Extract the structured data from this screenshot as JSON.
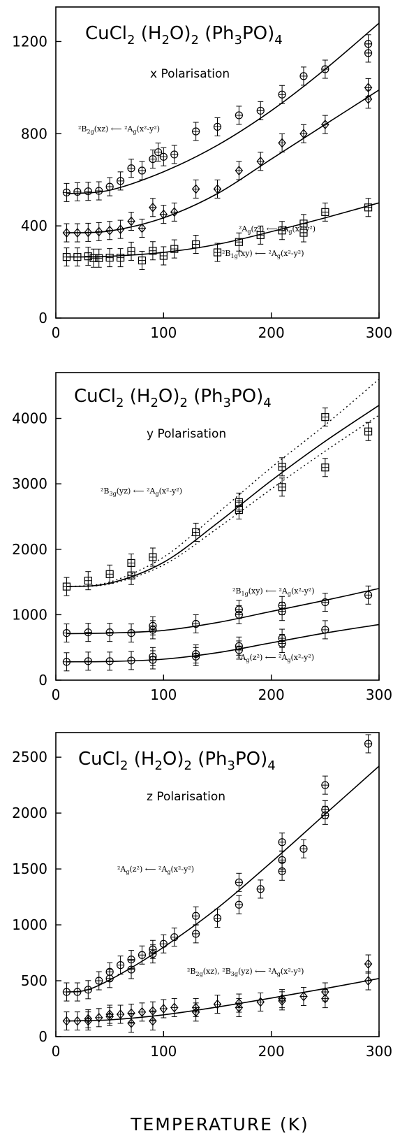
{
  "x_axis_title": "TEMPERATURE (K)",
  "chart_data": [
    {
      "type": "scatter",
      "title": "CuCl2 (H2O)2 (Ph3PO)4",
      "subtitle": "x Polarisation",
      "xlabel": "TEMPERATURE (K)",
      "ylabel": "",
      "xlim": [
        0,
        300
      ],
      "ylim": [
        0,
        1350
      ],
      "xticks": [
        0,
        100,
        200,
        300
      ],
      "yticks": [
        0,
        400,
        800,
        1200
      ],
      "series": [
        {
          "name": "2B2g(xz) ← 2Ag(x2-y2)",
          "points": [
            [
              10,
              545
            ],
            [
              20,
              548
            ],
            [
              30,
              550
            ],
            [
              40,
              552
            ],
            [
              50,
              570
            ],
            [
              60,
              595
            ],
            [
              70,
              650
            ],
            [
              80,
              640
            ],
            [
              90,
              690
            ],
            [
              95,
              720
            ],
            [
              100,
              700
            ],
            [
              110,
              710
            ],
            [
              130,
              810
            ],
            [
              150,
              830
            ],
            [
              170,
              880
            ],
            [
              190,
              900
            ],
            [
              210,
              970
            ],
            [
              230,
              1050
            ],
            [
              250,
              1080
            ],
            [
              290,
              1190
            ],
            [
              290,
              1150
            ]
          ],
          "fit": [
            [
              10,
              540
            ],
            [
              50,
              555
            ],
            [
              100,
              635
            ],
            [
              150,
              750
            ],
            [
              200,
              900
            ],
            [
              250,
              1080
            ],
            [
              300,
              1280
            ]
          ]
        },
        {
          "name": "2Ag(z2) ← 2Ag(x2-y2)",
          "points": [
            [
              10,
              370
            ],
            [
              20,
              370
            ],
            [
              30,
              372
            ],
            [
              40,
              375
            ],
            [
              50,
              380
            ],
            [
              60,
              385
            ],
            [
              70,
              420
            ],
            [
              80,
              390
            ],
            [
              90,
              480
            ],
            [
              100,
              450
            ],
            [
              110,
              460
            ],
            [
              130,
              560
            ],
            [
              150,
              560
            ],
            [
              170,
              640
            ],
            [
              190,
              680
            ],
            [
              210,
              760
            ],
            [
              230,
              800
            ],
            [
              250,
              840
            ],
            [
              290,
              1000
            ],
            [
              290,
              950
            ]
          ],
          "fit": [
            [
              10,
              370
            ],
            [
              50,
              378
            ],
            [
              100,
              435
            ],
            [
              150,
              540
            ],
            [
              200,
              690
            ],
            [
              250,
              840
            ],
            [
              300,
              990
            ]
          ]
        },
        {
          "name": "2B1g(xy) ← 2Ag(x2-y2)",
          "points": [
            [
              10,
              265
            ],
            [
              20,
              265
            ],
            [
              30,
              268
            ],
            [
              35,
              260
            ],
            [
              40,
              260
            ],
            [
              50,
              262
            ],
            [
              60,
              262
            ],
            [
              70,
              290
            ],
            [
              80,
              250
            ],
            [
              90,
              292
            ],
            [
              100,
              270
            ],
            [
              110,
              300
            ],
            [
              130,
              320
            ],
            [
              150,
              285
            ],
            [
              170,
              330
            ],
            [
              190,
              360
            ],
            [
              210,
              380
            ],
            [
              230,
              410
            ],
            [
              230,
              370
            ],
            [
              250,
              460
            ],
            [
              290,
              480
            ]
          ],
          "fit": [
            [
              10,
              265
            ],
            [
              50,
              268
            ],
            [
              100,
              285
            ],
            [
              150,
              320
            ],
            [
              200,
              375
            ],
            [
              250,
              435
            ],
            [
              300,
              500
            ]
          ]
        }
      ]
    },
    {
      "type": "scatter",
      "title": "CuCl2 (H2O)2 (Ph3PO)4",
      "subtitle": "y Polarisation",
      "xlabel": "TEMPERATURE (K)",
      "ylabel": "",
      "xlim": [
        0,
        300
      ],
      "ylim": [
        0,
        4700
      ],
      "xticks": [
        0,
        100,
        200,
        300
      ],
      "yticks": [
        0,
        1000,
        2000,
        3000,
        4000
      ],
      "series": [
        {
          "name": "2B3g(yz) ← 2Ag(x2-y2)",
          "points": [
            [
              10,
              1430
            ],
            [
              30,
              1520
            ],
            [
              50,
              1620
            ],
            [
              70,
              1600
            ],
            [
              70,
              1790
            ],
            [
              90,
              1880
            ],
            [
              130,
              2260
            ],
            [
              170,
              2600
            ],
            [
              170,
              2720
            ],
            [
              210,
              2950
            ],
            [
              210,
              3260
            ],
            [
              250,
              3250
            ],
            [
              250,
              4020
            ],
            [
              290,
              3800
            ]
          ],
          "fit": [
            [
              10,
              1430
            ],
            [
              50,
              1480
            ],
            [
              100,
              1800
            ],
            [
              150,
              2400
            ],
            [
              200,
              3050
            ],
            [
              250,
              3650
            ],
            [
              300,
              4200
            ]
          ],
          "fit_upper": [
            [
              10,
              1430
            ],
            [
              50,
              1500
            ],
            [
              100,
              1880
            ],
            [
              150,
              2550
            ],
            [
              200,
              3250
            ],
            [
              250,
              3900
            ],
            [
              300,
              4600
            ]
          ],
          "fit_lower": [
            [
              10,
              1430
            ],
            [
              50,
              1470
            ],
            [
              100,
              1760
            ],
            [
              150,
              2320
            ],
            [
              200,
              2920
            ],
            [
              250,
              3500
            ],
            [
              300,
              4050
            ]
          ]
        },
        {
          "name": "2B1g(xy) ← 2Ag(x2-y2)",
          "points": [
            [
              10,
              720
            ],
            [
              30,
              730
            ],
            [
              50,
              730
            ],
            [
              70,
              720
            ],
            [
              90,
              770
            ],
            [
              90,
              830
            ],
            [
              130,
              860
            ],
            [
              170,
              1000
            ],
            [
              170,
              1080
            ],
            [
              210,
              1050
            ],
            [
              210,
              1140
            ],
            [
              250,
              1190
            ],
            [
              290,
              1300
            ]
          ],
          "fit": [
            [
              10,
              710
            ],
            [
              50,
              720
            ],
            [
              100,
              760
            ],
            [
              150,
              880
            ],
            [
              200,
              1050
            ],
            [
              250,
              1220
            ],
            [
              300,
              1400
            ]
          ]
        },
        {
          "name": "2Ag(z2) ← 2Ag(x2-y2)",
          "points": [
            [
              10,
              280
            ],
            [
              30,
              290
            ],
            [
              50,
              290
            ],
            [
              70,
              300
            ],
            [
              90,
              310
            ],
            [
              90,
              360
            ],
            [
              130,
              360
            ],
            [
              130,
              400
            ],
            [
              170,
              460
            ],
            [
              170,
              520
            ],
            [
              210,
              560
            ],
            [
              210,
              640
            ],
            [
              250,
              770
            ]
          ],
          "fit": [
            [
              10,
              280
            ],
            [
              50,
              285
            ],
            [
              100,
              320
            ],
            [
              150,
              420
            ],
            [
              200,
              570
            ],
            [
              250,
              720
            ],
            [
              300,
              850
            ]
          ]
        }
      ]
    },
    {
      "type": "scatter",
      "title": "CuCl2 (H2O)2 (Ph3PO)4",
      "subtitle": "z Polarisation",
      "xlabel": "TEMPERATURE (K)",
      "ylabel": "",
      "xlim": [
        0,
        300
      ],
      "ylim": [
        0,
        2720
      ],
      "xticks": [
        0,
        100,
        200,
        300
      ],
      "yticks": [
        0,
        500,
        1000,
        1500,
        2000,
        2500
      ],
      "series": [
        {
          "name": "2Ag(z2) ← 2Ag(x2-y2)",
          "points": [
            [
              10,
              400
            ],
            [
              20,
              400
            ],
            [
              30,
              420
            ],
            [
              40,
              500
            ],
            [
              50,
              520
            ],
            [
              50,
              580
            ],
            [
              60,
              640
            ],
            [
              70,
              600
            ],
            [
              70,
              690
            ],
            [
              80,
              730
            ],
            [
              90,
              740
            ],
            [
              90,
              780
            ],
            [
              100,
              830
            ],
            [
              110,
              890
            ],
            [
              130,
              920
            ],
            [
              130,
              1080
            ],
            [
              150,
              1060
            ],
            [
              170,
              1180
            ],
            [
              170,
              1380
            ],
            [
              190,
              1320
            ],
            [
              210,
              1480
            ],
            [
              210,
              1580
            ],
            [
              210,
              1740
            ],
            [
              230,
              1680
            ],
            [
              250,
              1980
            ],
            [
              250,
              2030
            ],
            [
              250,
              2250
            ],
            [
              290,
              2620
            ]
          ],
          "fit": [
            [
              10,
              400
            ],
            [
              30,
              420
            ],
            [
              60,
              560
            ],
            [
              100,
              800
            ],
            [
              150,
              1150
            ],
            [
              200,
              1560
            ],
            [
              250,
              1990
            ],
            [
              300,
              2420
            ]
          ]
        },
        {
          "name": "2B2g(xz), 2B3g(yz) ← 2Ag(x2-y2)",
          "points": [
            [
              10,
              140
            ],
            [
              20,
              140
            ],
            [
              30,
              140
            ],
            [
              30,
              160
            ],
            [
              40,
              170
            ],
            [
              50,
              180
            ],
            [
              50,
              200
            ],
            [
              60,
              200
            ],
            [
              70,
              120
            ],
            [
              70,
              210
            ],
            [
              80,
              220
            ],
            [
              90,
              140
            ],
            [
              90,
              230
            ],
            [
              100,
              250
            ],
            [
              110,
              260
            ],
            [
              130,
              220
            ],
            [
              130,
              260
            ],
            [
              150,
              290
            ],
            [
              170,
              260
            ],
            [
              170,
              300
            ],
            [
              190,
              310
            ],
            [
              210,
              320
            ],
            [
              210,
              340
            ],
            [
              230,
              360
            ],
            [
              250,
              340
            ],
            [
              250,
              400
            ],
            [
              290,
              500
            ],
            [
              290,
              650
            ]
          ],
          "fit": [
            [
              10,
              140
            ],
            [
              50,
              150
            ],
            [
              100,
              195
            ],
            [
              150,
              265
            ],
            [
              200,
              345
            ],
            [
              250,
              430
            ],
            [
              300,
              520
            ]
          ]
        }
      ]
    }
  ]
}
